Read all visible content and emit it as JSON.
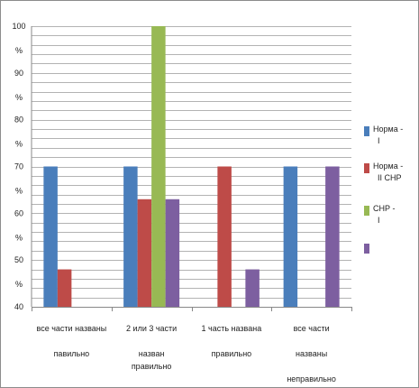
{
  "chart_data": {
    "type": "bar",
    "ylim": [
      40,
      100
    ],
    "grid": true,
    "legend_position": "right",
    "y_ticks": [
      {
        "value": 100,
        "lines": [
          "100",
          "%"
        ]
      },
      {
        "value": 90,
        "lines": [
          "90",
          "%"
        ]
      },
      {
        "value": 80,
        "lines": [
          "80",
          "%"
        ]
      },
      {
        "value": 70,
        "lines": [
          "70",
          "%"
        ]
      },
      {
        "value": 60,
        "lines": [
          "60",
          "%"
        ]
      },
      {
        "value": 50,
        "lines": [
          "50",
          "%"
        ]
      },
      {
        "value": 40,
        "lines": [
          "40"
        ]
      }
    ],
    "categories": [
      {
        "lines": [
          "все части названы",
          "",
          "павильно"
        ]
      },
      {
        "lines": [
          "2 или 3 части",
          "",
          "назван",
          "правильно"
        ]
      },
      {
        "lines": [
          "1 часть названа",
          "",
          "правильно"
        ]
      },
      {
        "lines": [
          "все части",
          "",
          "названы",
          "",
          "неправильно"
        ]
      }
    ],
    "series": [
      {
        "name": "Норма - I",
        "color": "#4a7ebb",
        "values": [
          70,
          70,
          null,
          70
        ]
      },
      {
        "name": "Норма - II СНР",
        "color": "#be4b48",
        "values": [
          48,
          63,
          70,
          null
        ]
      },
      {
        "name": "СНР - I",
        "color": "#98b954",
        "values": [
          null,
          100,
          null,
          null
        ]
      },
      {
        "name": "",
        "color": "#7d5fa0",
        "values": [
          null,
          63,
          48,
          70
        ]
      }
    ]
  }
}
